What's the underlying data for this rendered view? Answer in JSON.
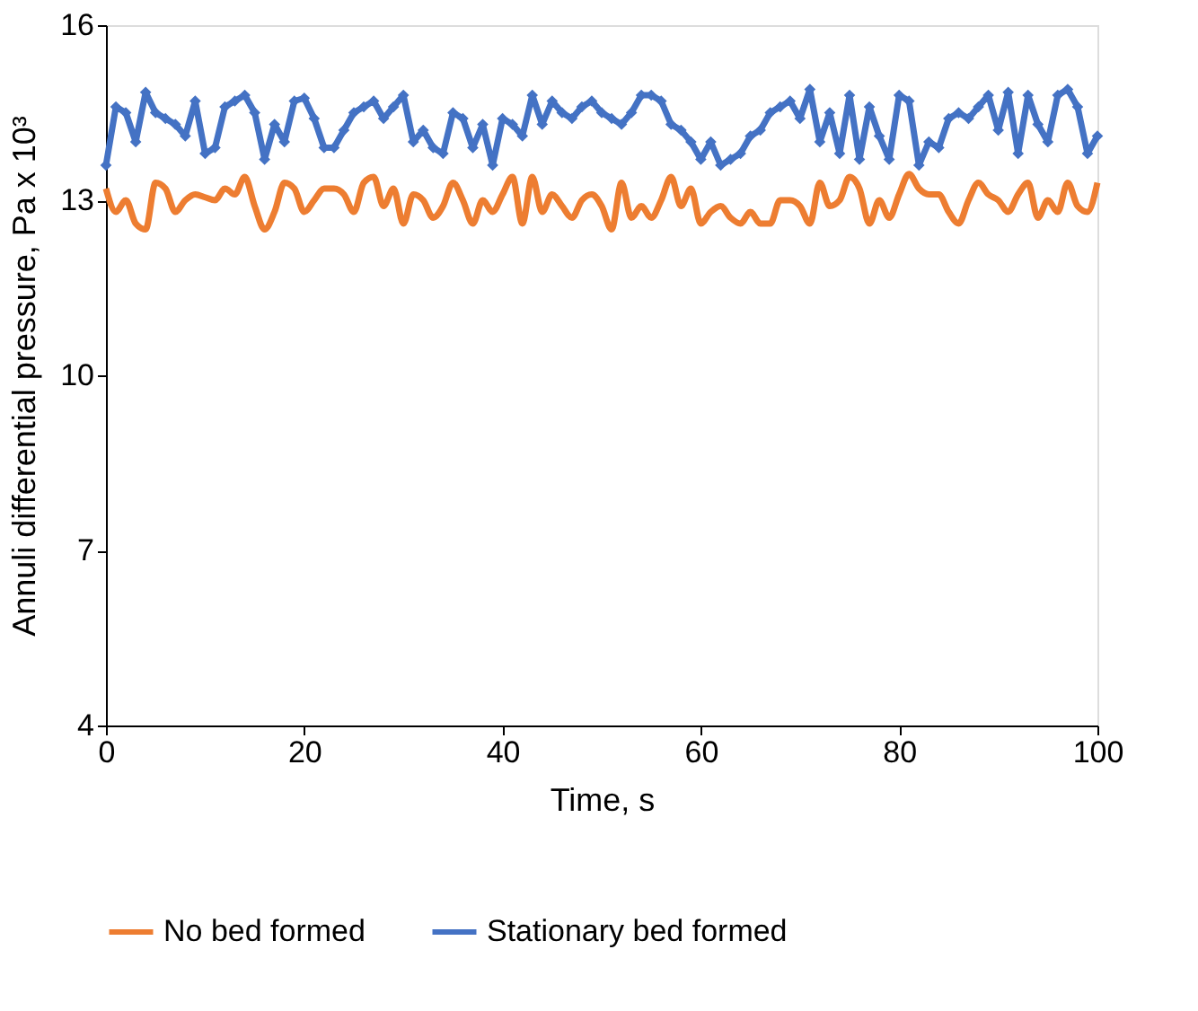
{
  "chart_data": {
    "type": "line",
    "xlabel": "Time, s",
    "ylabel": "Annuli differential pressure, Pa  x 10³",
    "x": [
      0,
      1,
      2,
      3,
      4,
      5,
      6,
      7,
      8,
      9,
      10,
      11,
      12,
      13,
      14,
      15,
      16,
      17,
      18,
      19,
      20,
      21,
      22,
      23,
      24,
      25,
      26,
      27,
      28,
      29,
      30,
      31,
      32,
      33,
      34,
      35,
      36,
      37,
      38,
      39,
      40,
      41,
      42,
      43,
      44,
      45,
      46,
      47,
      48,
      49,
      50,
      51,
      52,
      53,
      54,
      55,
      56,
      57,
      58,
      59,
      60,
      61,
      62,
      63,
      64,
      65,
      66,
      67,
      68,
      69,
      70,
      71,
      72,
      73,
      74,
      75,
      76,
      77,
      78,
      79,
      80,
      81,
      82,
      83,
      84,
      85,
      86,
      87,
      88,
      89,
      90,
      91,
      92,
      93,
      94,
      95,
      96,
      97,
      98,
      99,
      100
    ],
    "series": [
      {
        "name": "No bed formed",
        "color": "#ed7d31",
        "marker": "none",
        "values": [
          13.2,
          12.8,
          13.0,
          12.6,
          12.5,
          13.3,
          13.2,
          12.8,
          13.0,
          13.1,
          13.05,
          13.0,
          13.2,
          13.1,
          13.4,
          12.9,
          12.5,
          12.8,
          13.3,
          13.2,
          12.8,
          13.0,
          13.2,
          13.2,
          13.1,
          12.8,
          13.3,
          13.4,
          12.9,
          13.2,
          12.6,
          13.1,
          13.0,
          12.7,
          12.9,
          13.3,
          13.0,
          12.6,
          13.0,
          12.8,
          13.1,
          13.4,
          12.6,
          13.4,
          12.8,
          13.1,
          12.9,
          12.7,
          13.0,
          13.1,
          12.9,
          12.5,
          13.3,
          12.7,
          12.9,
          12.7,
          13.0,
          13.4,
          12.9,
          13.2,
          12.6,
          12.8,
          12.9,
          12.7,
          12.6,
          12.8,
          12.6,
          12.6,
          13.0,
          13.0,
          12.9,
          12.6,
          13.3,
          12.9,
          13.0,
          13.4,
          13.2,
          12.6,
          13.0,
          12.7,
          13.1,
          13.45,
          13.2,
          13.1,
          13.1,
          12.8,
          12.6,
          13.0,
          13.3,
          13.1,
          13.0,
          12.8,
          13.1,
          13.3,
          12.7,
          13.0,
          12.8,
          13.3,
          12.9,
          12.8,
          13.3
        ]
      },
      {
        "name": "Stationary bed formed",
        "color": "#4472c4",
        "marker": "diamond",
        "values": [
          13.6,
          14.6,
          14.5,
          14.0,
          14.85,
          14.5,
          14.4,
          14.3,
          14.1,
          14.7,
          13.8,
          13.9,
          14.6,
          14.7,
          14.8,
          14.5,
          13.7,
          14.3,
          14.0,
          14.7,
          14.75,
          14.4,
          13.9,
          13.9,
          14.2,
          14.5,
          14.6,
          14.7,
          14.4,
          14.6,
          14.8,
          14.0,
          14.2,
          13.9,
          13.8,
          14.5,
          14.4,
          13.9,
          14.3,
          13.6,
          14.4,
          14.3,
          14.1,
          14.8,
          14.3,
          14.7,
          14.5,
          14.4,
          14.6,
          14.7,
          14.5,
          14.4,
          14.3,
          14.5,
          14.8,
          14.8,
          14.7,
          14.3,
          14.2,
          14.0,
          13.7,
          14.0,
          13.6,
          13.7,
          13.8,
          14.1,
          14.2,
          14.5,
          14.6,
          14.7,
          14.4,
          14.9,
          14.0,
          14.5,
          13.8,
          14.8,
          13.7,
          14.6,
          14.1,
          13.7,
          14.8,
          14.7,
          13.6,
          14.0,
          13.9,
          14.4,
          14.5,
          14.4,
          14.6,
          14.8,
          14.2,
          14.85,
          13.8,
          14.8,
          14.3,
          14.0,
          14.8,
          14.9,
          14.6,
          13.8,
          14.1
        ]
      }
    ],
    "xlim": [
      0,
      100
    ],
    "xticks": [
      0,
      20,
      40,
      60,
      80,
      100
    ],
    "ylim": [
      4,
      16
    ],
    "yticks": [
      4,
      7,
      10,
      13,
      16
    ],
    "grid": false,
    "legend": "bottom",
    "line_style": "solid"
  }
}
